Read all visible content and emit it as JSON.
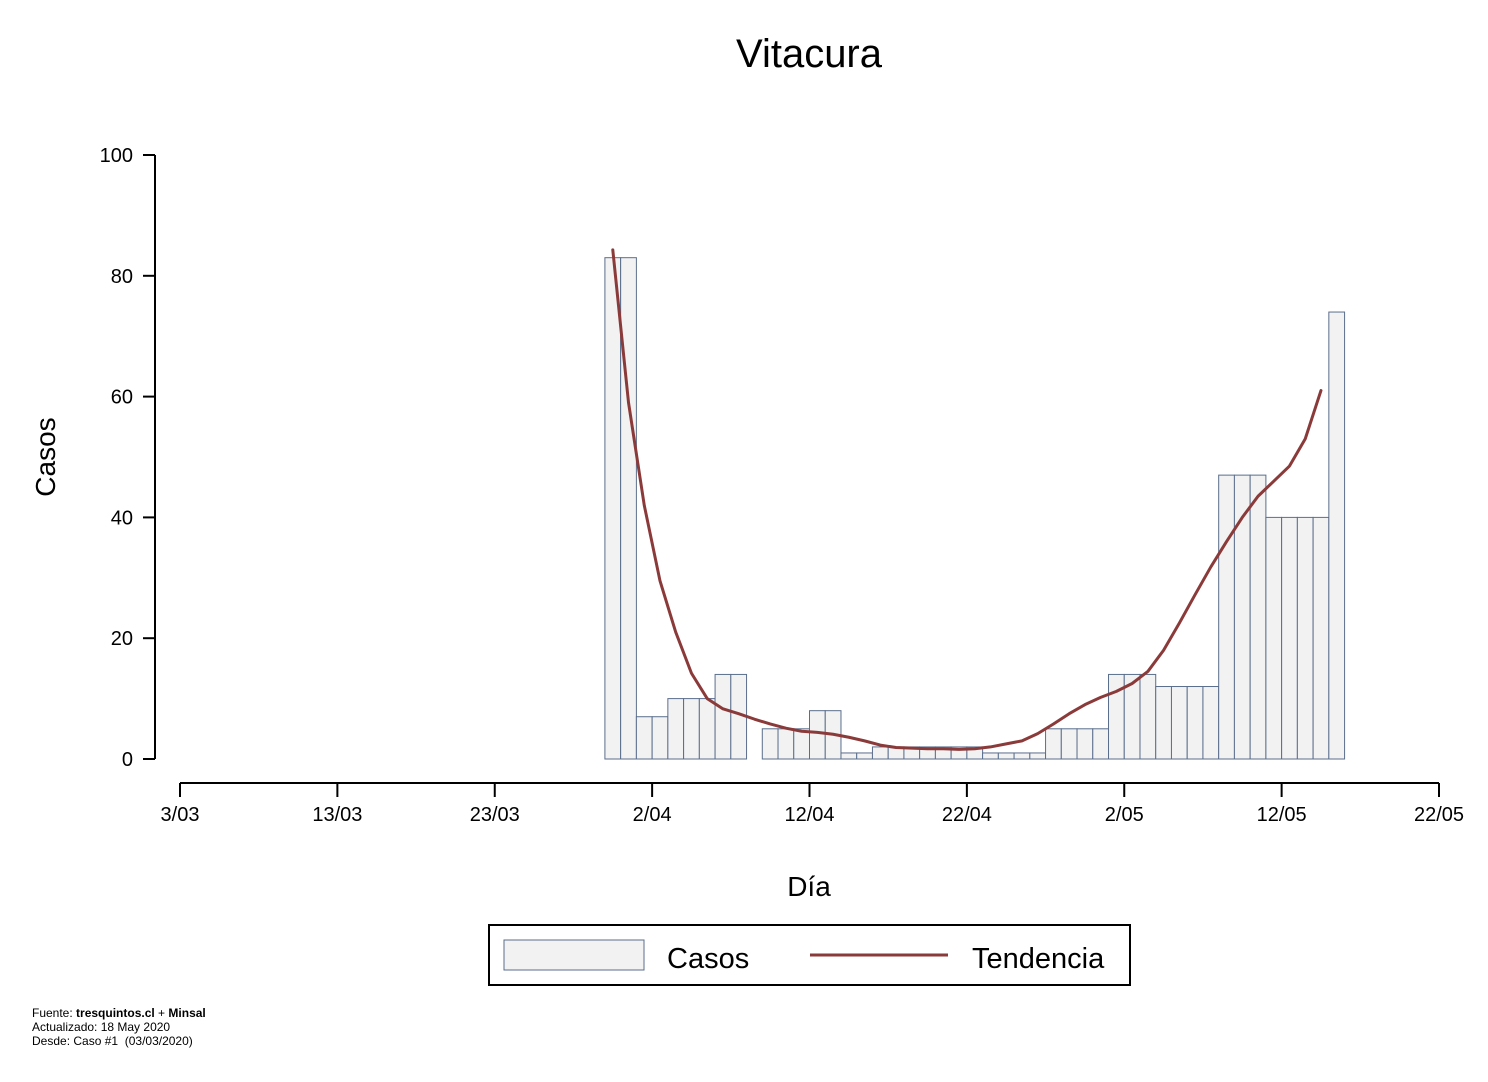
{
  "chart_data": {
    "type": "bar",
    "title": "Vitacura",
    "xlabel": "Día",
    "ylabel": "Casos",
    "ylim": [
      0,
      100
    ],
    "yticks": [
      0,
      20,
      40,
      60,
      80,
      100
    ],
    "x_start": "3/03",
    "x_end": "22/05",
    "xticks": [
      "3/03",
      "13/03",
      "23/03",
      "2/04",
      "12/04",
      "22/04",
      "2/05",
      "12/05",
      "22/05"
    ],
    "grid": false,
    "legend_position": "bottom",
    "legend": [
      "Casos",
      "Tendencia"
    ],
    "colors": {
      "bar_fill": "#f2f2f2",
      "bar_stroke": "#5a6e8c",
      "trend": "#8b3a3a"
    },
    "series": [
      {
        "name": "Casos",
        "kind": "bar",
        "points": [
          [
            "31/03",
            83
          ],
          [
            "1/04",
            83
          ],
          [
            "2/04",
            7
          ],
          [
            "3/04",
            7
          ],
          [
            "4/04",
            10
          ],
          [
            "5/04",
            10
          ],
          [
            "6/04",
            10
          ],
          [
            "7/04",
            14
          ],
          [
            "8/04",
            14
          ],
          [
            "10/04",
            5
          ],
          [
            "11/04",
            5
          ],
          [
            "12/04",
            5
          ],
          [
            "13/04",
            8
          ],
          [
            "14/04",
            8
          ],
          [
            "15/04",
            1
          ],
          [
            "16/04",
            1
          ],
          [
            "17/04",
            2
          ],
          [
            "18/04",
            2
          ],
          [
            "19/04",
            2
          ],
          [
            "20/04",
            2
          ],
          [
            "21/04",
            2
          ],
          [
            "22/04",
            2
          ],
          [
            "23/04",
            2
          ],
          [
            "24/04",
            1
          ],
          [
            "25/04",
            1
          ],
          [
            "26/04",
            1
          ],
          [
            "27/04",
            1
          ],
          [
            "28/04",
            5
          ],
          [
            "29/04",
            5
          ],
          [
            "30/04",
            5
          ],
          [
            "1/05",
            5
          ],
          [
            "2/05",
            14
          ],
          [
            "3/05",
            14
          ],
          [
            "4/05",
            14
          ],
          [
            "5/05",
            12
          ],
          [
            "6/05",
            12
          ],
          [
            "7/05",
            12
          ],
          [
            "8/05",
            12
          ],
          [
            "9/05",
            47
          ],
          [
            "10/05",
            47
          ],
          [
            "11/05",
            47
          ],
          [
            "12/05",
            40
          ],
          [
            "13/05",
            40
          ],
          [
            "14/05",
            40
          ],
          [
            "15/05",
            40
          ],
          [
            "16/05",
            74
          ]
        ]
      },
      {
        "name": "Tendencia",
        "kind": "line",
        "points": [
          [
            "31/03",
            84.3
          ],
          [
            "1/04",
            59
          ],
          [
            "2/04",
            42
          ],
          [
            "3/04",
            29.5
          ],
          [
            "4/04",
            21
          ],
          [
            "5/04",
            14.2
          ],
          [
            "6/04",
            10
          ],
          [
            "7/04",
            8.3
          ],
          [
            "8/04",
            7.5
          ],
          [
            "9/04",
            6.6
          ],
          [
            "10/04",
            5.8
          ],
          [
            "11/04",
            5.1
          ],
          [
            "12/04",
            4.6
          ],
          [
            "13/04",
            4.4
          ],
          [
            "14/04",
            4.1
          ],
          [
            "15/04",
            3.6
          ],
          [
            "16/04",
            3
          ],
          [
            "17/04",
            2.3
          ],
          [
            "18/04",
            1.9
          ],
          [
            "19/04",
            1.8
          ],
          [
            "20/04",
            1.7
          ],
          [
            "21/04",
            1.7
          ],
          [
            "22/04",
            1.6
          ],
          [
            "23/04",
            1.7
          ],
          [
            "24/04",
            2
          ],
          [
            "25/04",
            2.5
          ],
          [
            "26/04",
            3
          ],
          [
            "27/04",
            4.2
          ],
          [
            "28/04",
            5.8
          ],
          [
            "29/04",
            7.5
          ],
          [
            "30/04",
            9
          ],
          [
            "1/05",
            10.2
          ],
          [
            "2/05",
            11.2
          ],
          [
            "3/05",
            12.5
          ],
          [
            "4/05",
            14.5
          ],
          [
            "5/05",
            18
          ],
          [
            "6/05",
            22.5
          ],
          [
            "7/05",
            27.2
          ],
          [
            "8/05",
            31.8
          ],
          [
            "9/05",
            36
          ],
          [
            "10/05",
            40
          ],
          [
            "11/05",
            43.5
          ],
          [
            "12/05",
            46
          ],
          [
            "13/05",
            48.5
          ],
          [
            "14/05",
            53
          ],
          [
            "15/05",
            61
          ]
        ]
      }
    ]
  },
  "footer": {
    "source_prefix": "Fuente: ",
    "source_a": "tresquintos.cl",
    "source_join": " + ",
    "source_b": "Minsal",
    "updated": "Actualizado: 18 May 2020",
    "since": "Desde: Caso #1  (03/03/2020)"
  }
}
